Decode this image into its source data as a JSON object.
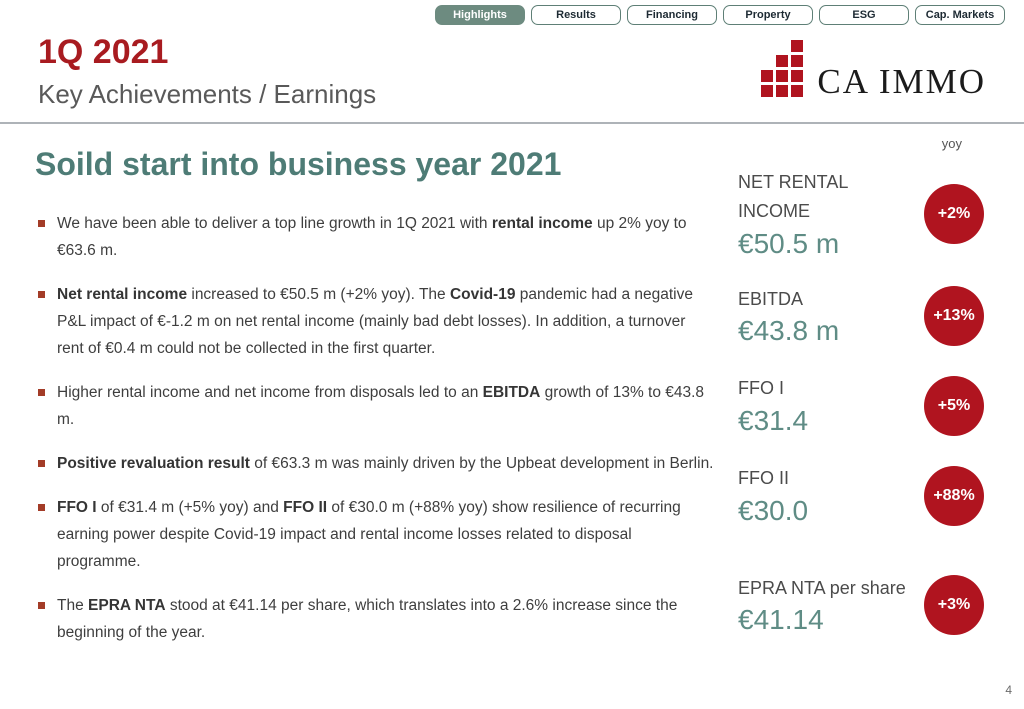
{
  "tabs": [
    {
      "label": "Highlights",
      "active": true
    },
    {
      "label": "Results",
      "active": false
    },
    {
      "label": "Financing",
      "active": false
    },
    {
      "label": "Property",
      "active": false
    },
    {
      "label": "ESG",
      "active": false
    },
    {
      "label": "Cap. Markets",
      "active": false
    }
  ],
  "header": {
    "period": "1Q 2021",
    "subtitle": "Key Achievements / Earnings",
    "logo_text": "CA IMMO"
  },
  "main": {
    "title": "Soild start into business year 2021",
    "bullets": [
      [
        {
          "text": "We have been able to deliver a top line growth in 1Q 2021 with "
        },
        {
          "text": "rental income",
          "bold": true
        },
        {
          "text": " up 2% yoy to €63.6 m."
        }
      ],
      [
        {
          "text": "Net rental income",
          "bold": true
        },
        {
          "text": " increased to €50.5 m (+2% yoy). The "
        },
        {
          "text": "Covid-19",
          "bold": true
        },
        {
          "text": " pandemic had a negative P&L impact of €-1.2 m on net rental income (mainly bad debt losses). In addition, a turnover rent of €0.4 m could not be collected in the first quarter."
        }
      ],
      [
        {
          "text": "Higher rental income and net income from disposals led to an "
        },
        {
          "text": "EBITDA",
          "bold": true
        },
        {
          "text": " growth of 13% to €43.8 m."
        }
      ],
      [
        {
          "text": "Positive revaluation result",
          "bold": true
        },
        {
          "text": " of €63.3 m was mainly driven by the Upbeat development in Berlin."
        }
      ],
      [
        {
          "text": "FFO I",
          "bold": true
        },
        {
          "text": " of €31.4 m (+5% yoy) and "
        },
        {
          "text": "FFO II",
          "bold": true
        },
        {
          "text": " of €30.0 m (+88% yoy) show resilience of recurring earning power despite Covid-19 impact and rental income losses related to disposal programme."
        }
      ],
      [
        {
          "text": "The "
        },
        {
          "text": "EPRA NTA",
          "bold": true
        },
        {
          "text": " stood at €41.14 per share, which translates into a 2.6% increase since the beginning of the year."
        }
      ]
    ]
  },
  "kpis": {
    "yoy_label": "yoy",
    "items": [
      {
        "label": "NET RENTAL INCOME",
        "value": "€50.5 m",
        "yoy": "+2%"
      },
      {
        "label": "EBITDA",
        "value": "€43.8 m",
        "yoy": "+13%"
      },
      {
        "label": "FFO I",
        "value": "€31.4",
        "yoy": "+5%"
      },
      {
        "label": "FFO II",
        "value": "€30.0",
        "yoy": "+88%"
      },
      {
        "label": "EPRA NTA per share",
        "value": "€41.14",
        "yoy": "+3%"
      }
    ]
  },
  "footer": {
    "page_number": "4"
  },
  "colors": {
    "brand_red": "#b0141f",
    "header_red": "#a81b20",
    "bullet_red": "#a33c28",
    "title_teal": "#4e7c76",
    "kpi_teal": "#5f8c85",
    "tab_active_bg": "#6d8b80",
    "tab_border": "#5e7f76"
  }
}
